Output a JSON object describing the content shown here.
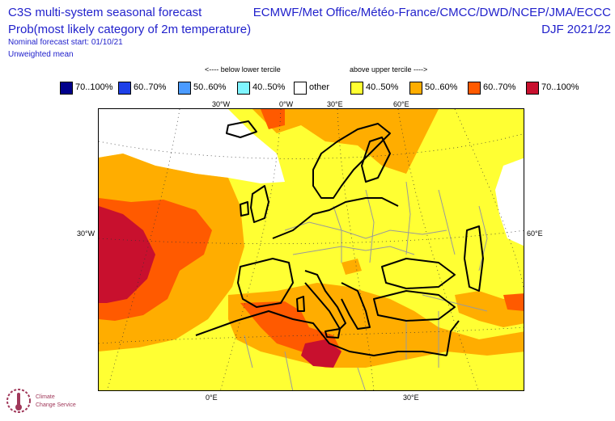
{
  "header": {
    "title": "C3S multi-system seasonal forecast",
    "subtitle": "Prob(most likely category of 2m temperature)",
    "start_note": "Nominal forecast start: 01/10/21",
    "mean_note": "Unweighted mean",
    "centres": "ECMWF/Met Office/Météo-France/CMCC/DWD/NCEP/JMA/ECCC",
    "season": "DJF 2021/22"
  },
  "legend": {
    "below_caption": "<---- below lower tercile",
    "above_caption": "above upper tercile ---->",
    "items": [
      {
        "label": "70..100%",
        "color": "#00008b"
      },
      {
        "label": "60..70%",
        "color": "#1e40e8"
      },
      {
        "label": "50..60%",
        "color": "#4b9bff"
      },
      {
        "label": "40..50%",
        "color": "#7ff5ff"
      },
      {
        "label": "other",
        "color": "#ffffff"
      },
      {
        "label": "40..50%",
        "color": "#ffff33"
      },
      {
        "label": "50..60%",
        "color": "#ffad00"
      },
      {
        "label": "60..70%",
        "color": "#ff5a00"
      },
      {
        "label": "70..100%",
        "color": "#c8102e"
      }
    ]
  },
  "grid_labels": {
    "top": [
      "30°W",
      "0°W",
      "30°E",
      "60°E"
    ],
    "left": "30°W",
    "right": "60°E",
    "bottom": [
      "0°E",
      "30°E"
    ]
  },
  "logo": {
    "line1": "Climate",
    "line2": "Change Service"
  }
}
